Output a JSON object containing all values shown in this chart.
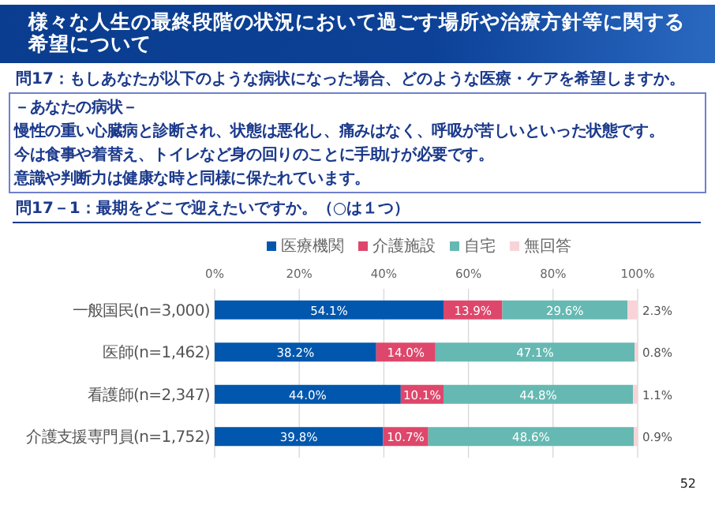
{
  "chart_data": {
    "type": "bar",
    "orientation": "horizontal",
    "stacked": true,
    "title": "様々な人生の最終段階の状況において過ごす場所や治療方針等に関する希望について",
    "subtitle": "問17：もしあなたが以下のような病状になった場合、どのような医療・ケアを希望しますか。",
    "annotations": [
      "－あなたの病状－",
      "慢性の重い心臓病と診断され、状態は悪化し、痛みはなく、呼吸が苦しいといった状態です。",
      "今は食事や着替え、トイレなど身の回りのことに手助けが必要です。",
      "意識や判断力は健康な時と同様に保たれています。",
      "問17－1：最期をどこで迎えたいですか。（○は１つ）",
      "52"
    ],
    "categories": [
      "一般国民(n=3,000)",
      "医師(n=1,462)",
      "看護師(n=2,347)",
      "介護支援専門員(n=1,752)"
    ],
    "series": [
      {
        "name": "医療機関",
        "color": "#0057ad",
        "values": [
          54.1,
          38.2,
          44.0,
          39.8
        ],
        "value_labels": [
          "54.1%",
          "38.2%",
          "44.0%",
          "39.8%"
        ]
      },
      {
        "name": "介護施設",
        "color": "#de476b",
        "values": [
          13.9,
          14.0,
          10.1,
          10.7
        ],
        "value_labels": [
          "13.9%",
          "14.0%",
          "10.1%",
          "10.7%"
        ]
      },
      {
        "name": "自宅",
        "color": "#65b9b2",
        "values": [
          29.6,
          47.1,
          44.8,
          48.6
        ],
        "value_labels": [
          "29.6%",
          "47.1%",
          "44.8%",
          "48.6%"
        ]
      },
      {
        "name": "無回答",
        "color": "#f8d3d8",
        "values": [
          2.3,
          0.8,
          1.1,
          0.9
        ],
        "value_labels": [
          "2.3%",
          "0.8%",
          "1.1%",
          "0.9%"
        ]
      }
    ],
    "xlim": [
      0,
      100
    ],
    "xticks": [
      {
        "value": 0,
        "label": "0%"
      },
      {
        "value": 20,
        "label": "20%"
      },
      {
        "value": 40,
        "label": "40%"
      },
      {
        "value": 60,
        "label": "60%"
      },
      {
        "value": 80,
        "label": "80%"
      },
      {
        "value": 100,
        "label": "100%"
      }
    ],
    "grid": "x",
    "legend": "top"
  }
}
